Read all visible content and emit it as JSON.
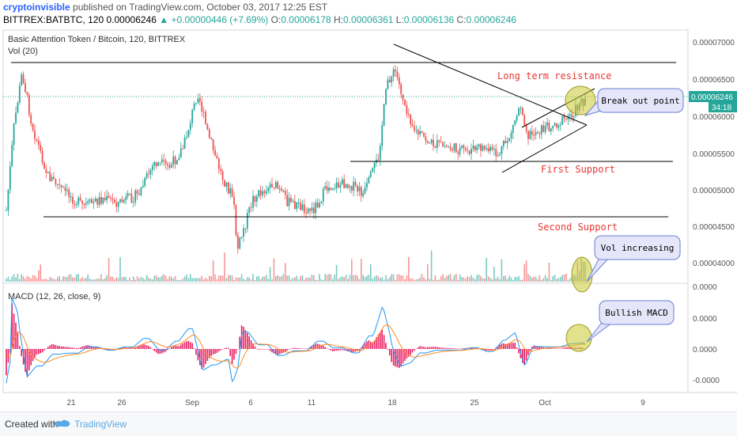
{
  "header": {
    "author": "cryptoinvisible",
    "published_text": "published on TradingView.com, October 03, 2017 12:25 EST",
    "symbol": "BITTREX:BATBTC, 120",
    "last_price": "0.00006246",
    "change": "+0.00000446 (+7.69%)",
    "open_label": "O:",
    "open": "0.00006178",
    "high_label": "H:",
    "high": "0.00006361",
    "low_label": "L:",
    "low": "0.00006136",
    "close_label": "C:",
    "close": "0.00006246"
  },
  "legend": {
    "main": "Basic Attention Token / Bitcoin, 120, BITTREX",
    "volume": "Vol (20)",
    "macd": "MACD (12, 26, close, 9)"
  },
  "price_axis": [
    "0.00007000",
    "0.00006500",
    "0.00006000",
    "0.00005500",
    "0.00005000",
    "0.00004500",
    "0.00004000"
  ],
  "price_tag": "0.00006246",
  "countdown_tag": "34:18",
  "macd_axis": [
    "0.0000",
    "0.0000",
    "0.0000",
    "-0.0000"
  ],
  "time_axis": [
    "21",
    "26",
    "Sep",
    "6",
    "11",
    "18",
    "25",
    "Oct",
    "9"
  ],
  "annotations": {
    "long_term_resistance": "Long term resistance",
    "first_support": "First Support",
    "second_support": "Second Support",
    "break_out_point": "Break out point",
    "vol_increasing": "Vol increasing",
    "bullish_macd": "Bullish MACD"
  },
  "colors": {
    "bull": "#26a69a",
    "bear": "#ef5350",
    "annotation_text": "#e53935",
    "bubble_fill": "#e6e6fa",
    "bubble_stroke": "#6a7fd4",
    "circle_fill": "#c8c832",
    "macd_line": "#2196f3",
    "signal_line": "#ff8a1f",
    "histogram": "#e91e63"
  },
  "footer": {
    "created_with": "Created with",
    "brand": "TradingView"
  }
}
